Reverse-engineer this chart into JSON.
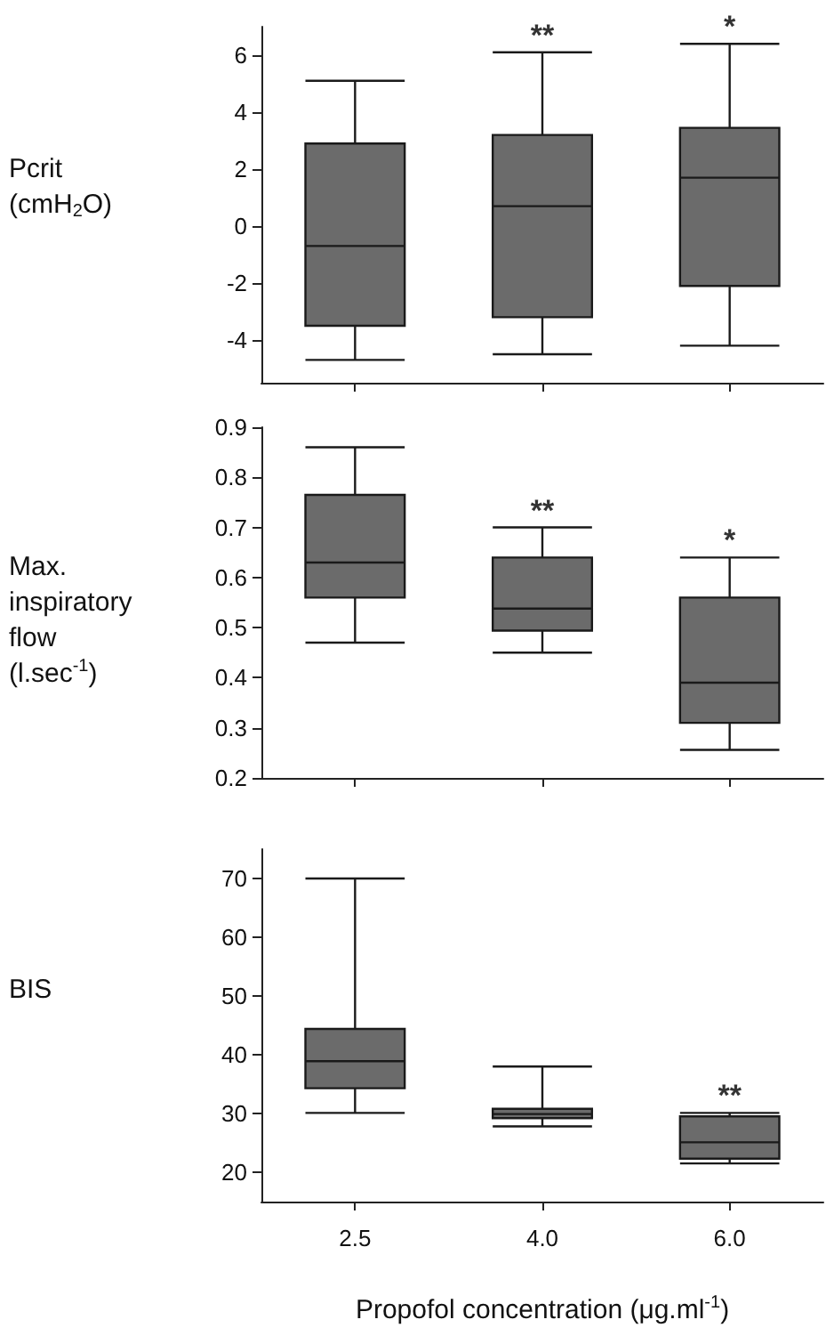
{
  "chart_data": [
    {
      "type": "box",
      "ylabel": "Pcrit\n(cmH$_{2}$O)",
      "categories": [
        "2.5",
        "4.0",
        "6.0"
      ],
      "ylim": [
        -5.5,
        7
      ],
      "yticks": [
        -4,
        -2,
        0,
        2,
        4,
        6
      ],
      "tick_labels": "y",
      "color": "#6b6b6b",
      "boxes": [
        {
          "low": -4.7,
          "q1": -3.5,
          "median": -0.7,
          "q3": 2.9,
          "high": 5.1
        },
        {
          "low": -4.5,
          "q1": -3.2,
          "median": 0.7,
          "q3": 3.2,
          "high": 6.1
        },
        {
          "low": -4.2,
          "q1": -2.1,
          "median": 1.7,
          "q3": 3.45,
          "high": 6.4
        }
      ],
      "annotations": [
        {
          "text": "**",
          "x": "4.0",
          "y": 6.1
        },
        {
          "text": "*",
          "x": "6.0",
          "y": 6.4
        }
      ]
    },
    {
      "type": "box",
      "ylabel": "Max.\ninspiratory\nflow\n(l.sec$^{-1}$)",
      "categories": [
        "2.5",
        "4.0",
        "6.0"
      ],
      "ylim": [
        0.2,
        0.9
      ],
      "yticks": [
        0.2,
        0.3,
        0.4,
        0.5,
        0.6,
        0.7,
        0.8,
        0.9
      ],
      "tick_labels": "y",
      "color": "#6b6b6b",
      "boxes": [
        {
          "low": 0.47,
          "q1": 0.56,
          "median": 0.63,
          "q3": 0.765,
          "high": 0.86
        },
        {
          "low": 0.45,
          "q1": 0.494,
          "median": 0.538,
          "q3": 0.64,
          "high": 0.7
        },
        {
          "low": 0.256,
          "q1": 0.31,
          "median": 0.39,
          "q3": 0.56,
          "high": 0.64
        }
      ],
      "annotations": [
        {
          "text": "**",
          "x": "4.0",
          "y": 0.7
        },
        {
          "text": "*",
          "x": "6.0",
          "y": 0.64
        }
      ]
    },
    {
      "type": "box",
      "ylabel": "BIS",
      "xlabel": "Propofol concentration (μg.ml$^{-1}$)",
      "categories": [
        "2.5",
        "4.0",
        "6.0"
      ],
      "ylim": [
        15,
        75
      ],
      "yticks": [
        20,
        30,
        40,
        50,
        60,
        70
      ],
      "color": "#6b6b6b",
      "boxes": [
        {
          "low": 30.1,
          "q1": 34.3,
          "median": 38.9,
          "q3": 44.4,
          "high": 70
        },
        {
          "low": 27.8,
          "q1": 29.2,
          "median": 29.9,
          "q3": 30.8,
          "high": 38
        },
        {
          "low": 21.5,
          "q1": 22.3,
          "median": 25.1,
          "q3": 29.5,
          "high": 30.1
        }
      ],
      "annotations": [
        {
          "text": "**",
          "x": "6.0",
          "y": 30.1
        }
      ]
    }
  ]
}
